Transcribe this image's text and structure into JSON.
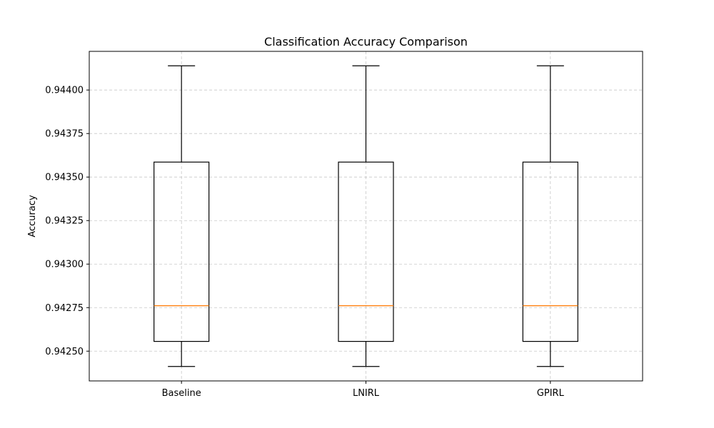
{
  "chart_data": {
    "type": "box",
    "title": "Classification Accuracy Comparison",
    "xlabel": "",
    "ylabel": "Accuracy",
    "categories": [
      "Baseline",
      "LNIRL",
      "GPIRL"
    ],
    "boxes": [
      {
        "category": "Baseline",
        "whisker_low": 0.942412,
        "q1": 0.942556,
        "median": 0.942761,
        "q3": 0.943586,
        "whisker_high": 0.944139
      },
      {
        "category": "LNIRL",
        "whisker_low": 0.942412,
        "q1": 0.942556,
        "median": 0.942761,
        "q3": 0.943586,
        "whisker_high": 0.944139
      },
      {
        "category": "GPIRL",
        "whisker_low": 0.942412,
        "q1": 0.942556,
        "median": 0.942761,
        "q3": 0.943586,
        "whisker_high": 0.944139
      }
    ],
    "yticks": [
      0.9425,
      0.94275,
      0.943,
      0.94325,
      0.9435,
      0.94375,
      0.944
    ],
    "ytick_labels": [
      "0.94250",
      "0.94275",
      "0.94300",
      "0.94325",
      "0.94350",
      "0.94375",
      "0.94400"
    ],
    "ylim": [
      0.942329,
      0.944222
    ],
    "grid": true,
    "colors": {
      "box": "#000000",
      "median": "#ff7f0e",
      "grid": "#b0b0b0"
    }
  }
}
